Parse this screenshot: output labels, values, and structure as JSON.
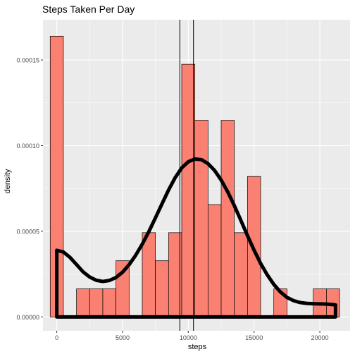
{
  "chart_data": {
    "type": "bar",
    "title": "Steps Taken Per Day",
    "xlabel": "steps",
    "ylabel": "density",
    "xlim": [
      -1050,
      22300
    ],
    "ylim": [
      -8.1e-06,
      0.0001735
    ],
    "x_ticks": [
      0,
      5000,
      10000,
      15000,
      20000
    ],
    "x_tick_labels": [
      "0",
      "5000",
      "10000",
      "15000",
      "20000"
    ],
    "y_ticks": [
      0,
      5e-05,
      0.0001,
      0.00015
    ],
    "y_tick_labels": [
      "0.00000",
      "0.00005",
      "0.00010",
      "0.00015"
    ],
    "grid": true,
    "histogram": {
      "bin_width": 1000,
      "fill_color": "#fa8072",
      "outline_color": "#000000",
      "bins": [
        {
          "start": -500,
          "end": 500,
          "density": 0.0001639
        },
        {
          "start": 1500,
          "end": 2500,
          "density": 1.64e-05
        },
        {
          "start": 2500,
          "end": 3500,
          "density": 1.64e-05
        },
        {
          "start": 3500,
          "end": 4500,
          "density": 1.64e-05
        },
        {
          "start": 4500,
          "end": 5500,
          "density": 3.28e-05
        },
        {
          "start": 6500,
          "end": 7500,
          "density": 4.92e-05
        },
        {
          "start": 7500,
          "end": 8500,
          "density": 3.28e-05
        },
        {
          "start": 8500,
          "end": 9500,
          "density": 4.92e-05
        },
        {
          "start": 9500,
          "end": 10500,
          "density": 0.0001475
        },
        {
          "start": 10500,
          "end": 11500,
          "density": 0.0001148
        },
        {
          "start": 11500,
          "end": 12500,
          "density": 6.56e-05
        },
        {
          "start": 12500,
          "end": 13500,
          "density": 0.0001148
        },
        {
          "start": 13500,
          "end": 14500,
          "density": 4.92e-05
        },
        {
          "start": 14500,
          "end": 15500,
          "density": 8.2e-05
        },
        {
          "start": 16500,
          "end": 17500,
          "density": 1.64e-05
        },
        {
          "start": 19500,
          "end": 20500,
          "density": 1.64e-05
        },
        {
          "start": 20500,
          "end": 21500,
          "density": 1.64e-05
        }
      ]
    },
    "density_curve": {
      "color": "#000000",
      "x": [
        0,
        500,
        1000,
        1500,
        2000,
        2500,
        3000,
        3500,
        4000,
        4500,
        5000,
        5500,
        6000,
        6500,
        7000,
        7500,
        8000,
        8500,
        9000,
        9500,
        10000,
        10500,
        11000,
        11500,
        12000,
        12500,
        13000,
        13500,
        14000,
        14500,
        15000,
        15500,
        16000,
        16500,
        17000,
        17500,
        18000,
        18500,
        19000,
        19500,
        20000,
        20500,
        21000,
        21194
      ],
      "y": [
        3.89e-05,
        3.79e-05,
        3.48e-05,
        3.06e-05,
        2.63e-05,
        2.33e-05,
        2.14e-05,
        2.07e-05,
        2.13e-05,
        2.3e-05,
        2.61e-05,
        3.05e-05,
        3.6e-05,
        4.25e-05,
        4.98e-05,
        5.78e-05,
        6.6e-05,
        7.41e-05,
        8.13e-05,
        8.7e-05,
        9.06e-05,
        9.22e-05,
        9.18e-05,
        8.95e-05,
        8.55e-05,
        7.99e-05,
        7.3e-05,
        6.5e-05,
        5.63e-05,
        4.75e-05,
        3.9e-05,
        3.12e-05,
        2.46e-05,
        1.9e-05,
        1.46e-05,
        1.14e-05,
        9.5e-06,
        8.4e-06,
        7.9e-06,
        7.7e-06,
        7.6e-06,
        7.5e-06,
        7.2e-06,
        7e-06
      ],
      "closed_to_baseline": true
    },
    "vlines": [
      {
        "x": 9354,
        "color": "#000000"
      },
      {
        "x": 10395,
        "color": "#000000"
      }
    ],
    "colors": {
      "panel_background": "#ebebeb",
      "grid_major": "#ffffff",
      "text": "#000000",
      "tick_text": "#4d4d4d"
    }
  }
}
